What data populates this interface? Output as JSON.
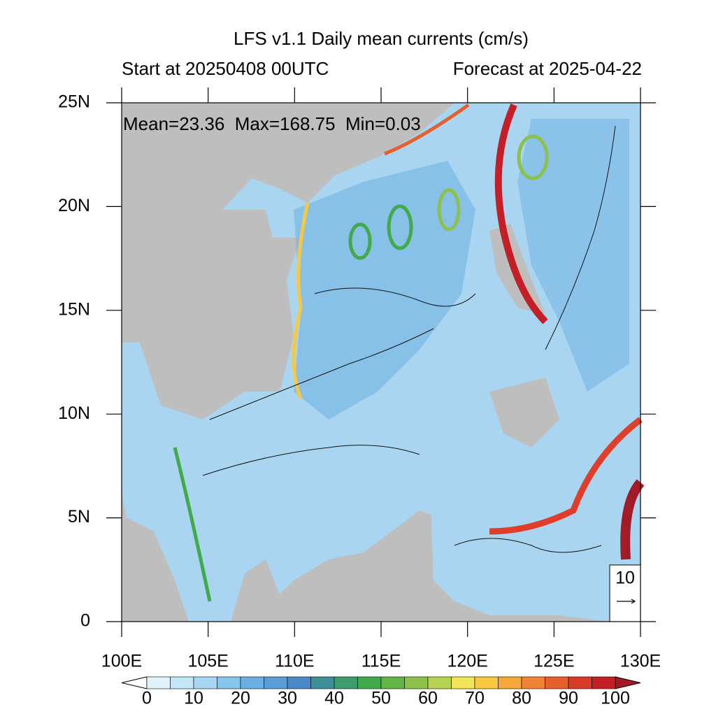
{
  "chart_data": {
    "type": "map",
    "title": "LFS v1.1 Daily mean currents (cm/s)",
    "subtitle_left": "Start at 20250408 00UTC",
    "subtitle_right": "Forecast at 2025-04-22",
    "annotation": "Mean=23.36  Max=168.75  Min=0.03",
    "xlim": [
      100,
      130
    ],
    "ylim": [
      0,
      25
    ],
    "xticks": [
      {
        "value": 100,
        "label": "100E"
      },
      {
        "value": 105,
        "label": "105E"
      },
      {
        "value": 110,
        "label": "110E"
      },
      {
        "value": 115,
        "label": "115E"
      },
      {
        "value": 120,
        "label": "120E"
      },
      {
        "value": 125,
        "label": "125E"
      },
      {
        "value": 130,
        "label": "130E"
      }
    ],
    "yticks": [
      0,
      {
        "value": 5,
        "label": "5N"
      },
      {
        "value": 10,
        "label": "10N"
      },
      {
        "value": 15,
        "label": "15N"
      },
      {
        "value": 20,
        "label": "20N"
      },
      {
        "value": 25,
        "label": "25N"
      }
    ],
    "reference_vector": 10,
    "colorbar": {
      "range": [
        0,
        100
      ],
      "ticks": [
        0,
        10,
        20,
        30,
        40,
        50,
        60,
        70,
        80,
        90,
        100
      ],
      "under_color": "#ffffff",
      "over_color": "#a11a25",
      "colors": [
        "#e0f3fb",
        "#c3e7f7",
        "#a5d7f2",
        "#87c6ec",
        "#6cb0e2",
        "#5a9dd6",
        "#4a88c7",
        "#3f8f98",
        "#3e9c6c",
        "#42aa4a",
        "#63b548",
        "#8cc24c",
        "#b8d354",
        "#f3e55a",
        "#f8c840",
        "#f5a83a",
        "#ef8333",
        "#e5602d",
        "#d83c29",
        "#c41f27"
      ]
    }
  }
}
